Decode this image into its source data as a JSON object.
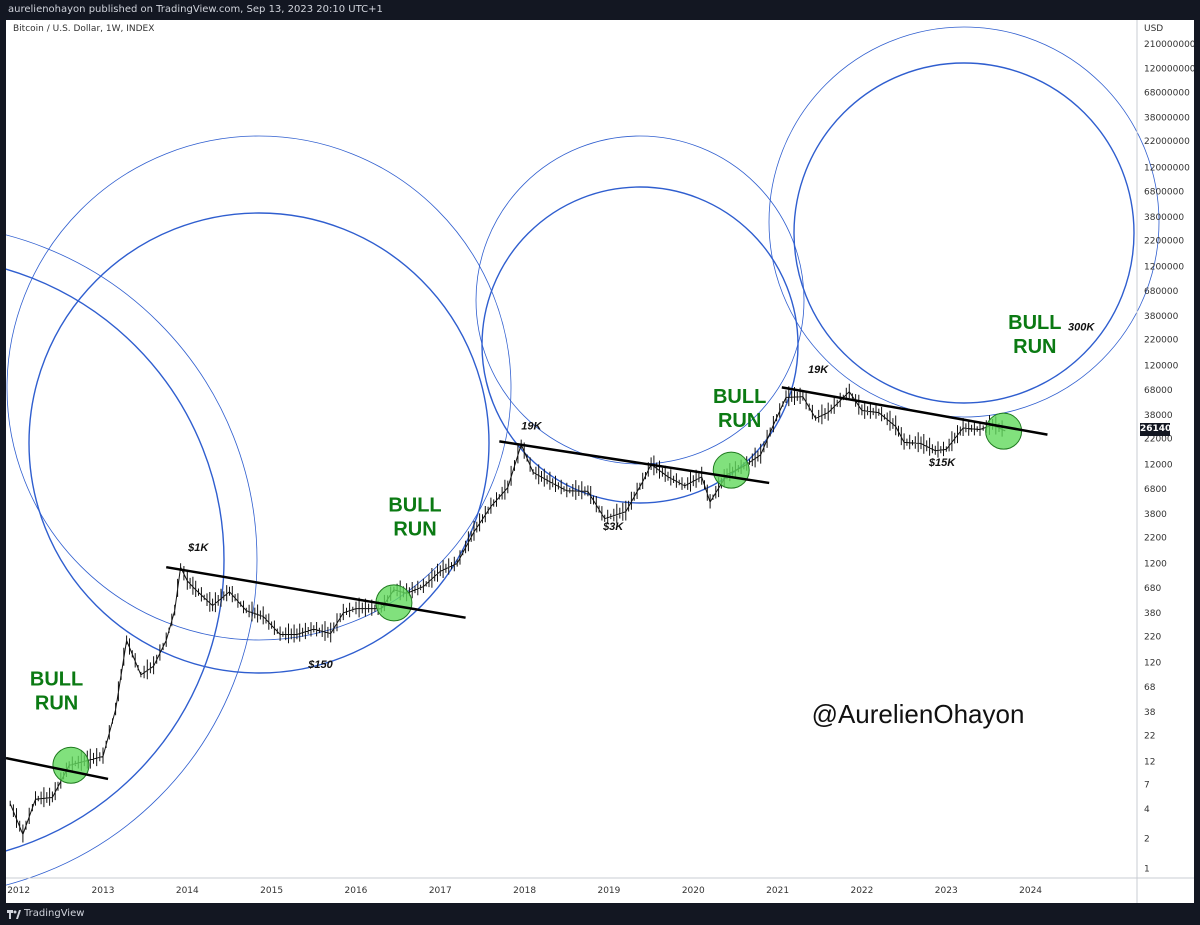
{
  "header": {
    "publish_info": "aurelienohayon published on TradingView.com, Sep 13, 2023 20:10 UTC+1",
    "symbol": "Bitcoin / U.S. Dollar, 1W, INDEX",
    "currency": "USD"
  },
  "footer": {
    "brand": "TradingView"
  },
  "colors": {
    "circle": "#2f5ecf",
    "bull_text": "#0b7a13",
    "highlight_fill": "#62d95c",
    "trendline": "#000000",
    "candle": "#111111"
  },
  "chart_data": {
    "type": "line",
    "title": "Bitcoin / U.S. Dollar, 1W, INDEX",
    "yscale": "log",
    "ylim": [
      0.8,
      260000000
    ],
    "xlim": [
      2011.85,
      2025.25
    ],
    "x_ticks": [
      2012,
      2013,
      2014,
      2015,
      2016,
      2017,
      2018,
      2019,
      2020,
      2021,
      2022,
      2023,
      2024
    ],
    "y_ticks": [
      1,
      2,
      4,
      7,
      12,
      22,
      38,
      68,
      120,
      220,
      380,
      680,
      1200,
      2200,
      3800,
      6800,
      12000,
      22000,
      38000,
      68000,
      120000,
      220000,
      380000,
      680000,
      1200000,
      2200000,
      3800000,
      6800000,
      12000000,
      22000000,
      38000000,
      68000000,
      120000000,
      210000000
    ],
    "last_price": "26140",
    "price_path": [
      [
        2011.9,
        4.5
      ],
      [
        2012.05,
        2.2
      ],
      [
        2012.2,
        5
      ],
      [
        2012.4,
        5.2
      ],
      [
        2012.6,
        11
      ],
      [
        2012.85,
        12.5
      ],
      [
        2013.0,
        13.5
      ],
      [
        2013.15,
        40
      ],
      [
        2013.28,
        200
      ],
      [
        2013.45,
        90
      ],
      [
        2013.6,
        110
      ],
      [
        2013.75,
        200
      ],
      [
        2013.85,
        400
      ],
      [
        2013.92,
        1100
      ],
      [
        2014.0,
        800
      ],
      [
        2014.1,
        650
      ],
      [
        2014.3,
        450
      ],
      [
        2014.5,
        620
      ],
      [
        2014.7,
        400
      ],
      [
        2014.9,
        350
      ],
      [
        2015.1,
        230
      ],
      [
        2015.3,
        230
      ],
      [
        2015.5,
        260
      ],
      [
        2015.7,
        235
      ],
      [
        2015.85,
        380
      ],
      [
        2016.0,
        420
      ],
      [
        2016.3,
        420
      ],
      [
        2016.45,
        650
      ],
      [
        2016.6,
        600
      ],
      [
        2016.8,
        700
      ],
      [
        2017.0,
        1000
      ],
      [
        2017.2,
        1200
      ],
      [
        2017.4,
        2500
      ],
      [
        2017.6,
        4500
      ],
      [
        2017.8,
        7000
      ],
      [
        2017.96,
        19000
      ],
      [
        2018.1,
        10000
      ],
      [
        2018.3,
        8000
      ],
      [
        2018.5,
        6500
      ],
      [
        2018.75,
        6400
      ],
      [
        2018.95,
        3400
      ],
      [
        2019.2,
        4000
      ],
      [
        2019.4,
        8000
      ],
      [
        2019.5,
        12000
      ],
      [
        2019.7,
        9000
      ],
      [
        2019.9,
        7300
      ],
      [
        2020.1,
        9000
      ],
      [
        2020.2,
        5000
      ],
      [
        2020.4,
        9500
      ],
      [
        2020.6,
        11500
      ],
      [
        2020.8,
        15000
      ],
      [
        2020.95,
        30000
      ],
      [
        2021.1,
        57000
      ],
      [
        2021.3,
        58000
      ],
      [
        2021.45,
        35000
      ],
      [
        2021.6,
        40000
      ],
      [
        2021.85,
        65000
      ],
      [
        2022.0,
        42000
      ],
      [
        2022.2,
        40000
      ],
      [
        2022.4,
        29000
      ],
      [
        2022.5,
        20000
      ],
      [
        2022.7,
        19500
      ],
      [
        2022.87,
        16500
      ],
      [
        2023.0,
        17000
      ],
      [
        2023.2,
        28000
      ],
      [
        2023.4,
        27000
      ],
      [
        2023.55,
        30000
      ],
      [
        2023.7,
        26140
      ]
    ],
    "trendlines": [
      [
        [
          2011.85,
          13
        ],
        [
          2013.06,
          8
        ]
      ],
      [
        [
          2013.75,
          1100
        ],
        [
          2017.3,
          340
        ]
      ],
      [
        [
          2017.7,
          20500
        ],
        [
          2020.9,
          7800
        ]
      ],
      [
        [
          2021.05,
          72000
        ],
        [
          2024.2,
          24000
        ]
      ]
    ],
    "highlights": [
      {
        "x": 2012.62,
        "y": 11
      },
      {
        "x": 2016.45,
        "y": 480
      },
      {
        "x": 2020.45,
        "y": 10500
      },
      {
        "x": 2023.68,
        "y": 26000
      }
    ],
    "annotations": [
      {
        "text": "$1K",
        "x": 2014.13,
        "y": 1600,
        "style": "italic"
      },
      {
        "text": "$150",
        "x": 2015.58,
        "y": 105,
        "style": "italic"
      },
      {
        "text": "19K",
        "x": 2018.08,
        "y": 27000,
        "style": "italic"
      },
      {
        "text": "$3K",
        "x": 2019.05,
        "y": 2600,
        "style": "italic"
      },
      {
        "text": "19K",
        "x": 2021.48,
        "y": 100000,
        "style": "italic"
      },
      {
        "text": "$15K",
        "x": 2022.95,
        "y": 11500,
        "style": "italic"
      },
      {
        "text": "300K",
        "x": 2024.6,
        "y": 270000,
        "style": "italic"
      }
    ],
    "bull_run_labels": [
      {
        "line1": "BULL",
        "line2": "RUN",
        "x": 2012.45,
        "y": 70
      },
      {
        "line1": "BULL",
        "line2": "RUN",
        "x": 2016.7,
        "y": 4000
      },
      {
        "line1": "BULL",
        "line2": "RUN",
        "x": 2020.55,
        "y": 50000
      },
      {
        "line1": "BULL",
        "line2": "RUN",
        "x": 2024.05,
        "y": 280000
      }
    ],
    "watermark": "@AurelienOhayon"
  }
}
